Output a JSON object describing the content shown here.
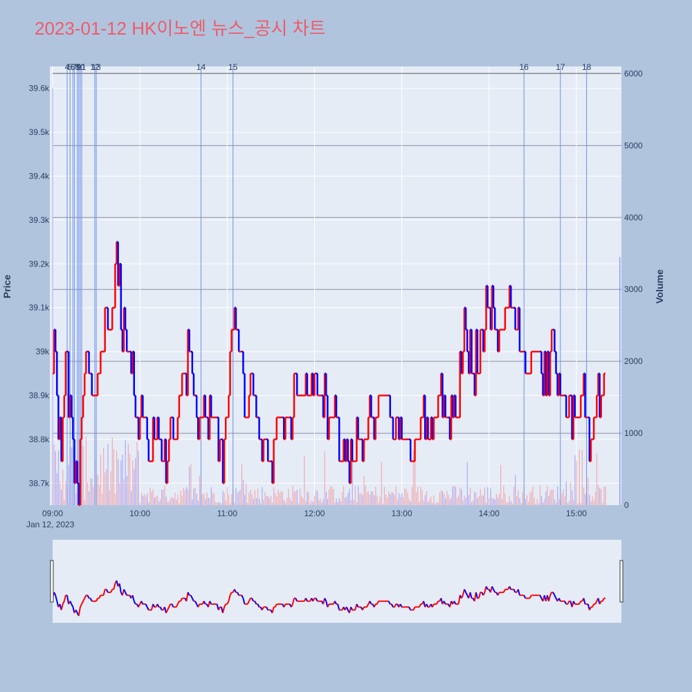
{
  "chart_data": {
    "type": "candlestick",
    "title": "2023-01-12 HK이노엔 뉴스_공시 차트",
    "ylabel": "Price",
    "y2label": "Volume",
    "date_label": "Jan 12, 2023",
    "x_range": [
      "09:00",
      "15:30"
    ],
    "ylim": [
      38650,
      39650
    ],
    "y2lim": [
      0,
      6100
    ],
    "price_ticks": [
      {
        "v": 38700,
        "label": "38.7k"
      },
      {
        "v": 38800,
        "label": "38.8k"
      },
      {
        "v": 38900,
        "label": "38.9k"
      },
      {
        "v": 39000,
        "label": "39k"
      },
      {
        "v": 39100,
        "label": "39.1k"
      },
      {
        "v": 39200,
        "label": "39.2k"
      },
      {
        "v": 39300,
        "label": "39.3k"
      },
      {
        "v": 39400,
        "label": "39.4k"
      },
      {
        "v": 39500,
        "label": "39.5k"
      },
      {
        "v": 39600,
        "label": "39.6k"
      }
    ],
    "volume_ticks": [
      {
        "v": 0,
        "label": "0"
      },
      {
        "v": 1000,
        "label": "1000"
      },
      {
        "v": 2000,
        "label": "2000"
      },
      {
        "v": 3000,
        "label": "3000"
      },
      {
        "v": 4000,
        "label": "4000"
      },
      {
        "v": 5000,
        "label": "5000"
      },
      {
        "v": 6000,
        "label": "6000"
      }
    ],
    "time_ticks": [
      "09:00",
      "10:00",
      "11:00",
      "12:00",
      "13:00",
      "14:00",
      "15:00"
    ],
    "news_markers": [
      {
        "label": "4",
        "time": "09:10"
      },
      {
        "label": "5",
        "time": "09:12"
      },
      {
        "label": "6",
        "time": "09:14"
      },
      {
        "label": "7",
        "time": "09:15"
      },
      {
        "label": "8",
        "time": "09:17"
      },
      {
        "label": "9",
        "time": "09:18"
      },
      {
        "label": "10",
        "time": "09:19"
      },
      {
        "label": "11",
        "time": "09:20"
      },
      {
        "label": "12",
        "time": "09:29"
      },
      {
        "label": "13",
        "time": "09:30"
      },
      {
        "label": "14",
        "time": "10:42"
      },
      {
        "label": "15",
        "time": "11:04"
      },
      {
        "label": "16",
        "time": "14:24"
      },
      {
        "label": "17",
        "time": "14:49"
      },
      {
        "label": "18",
        "time": "15:07"
      }
    ],
    "key_prices": [
      {
        "time": "09:00",
        "price": 38950
      },
      {
        "time": "09:02",
        "price": 39000
      },
      {
        "time": "09:04",
        "price": 38800
      },
      {
        "time": "09:06",
        "price": 38750
      },
      {
        "time": "09:08",
        "price": 38900
      },
      {
        "time": "09:10",
        "price": 38950
      },
      {
        "time": "09:13",
        "price": 38850
      },
      {
        "time": "09:15",
        "price": 38750
      },
      {
        "time": "09:18",
        "price": 38700
      },
      {
        "time": "09:20",
        "price": 38850
      },
      {
        "time": "09:24",
        "price": 39050
      },
      {
        "time": "09:27",
        "price": 38900
      },
      {
        "time": "09:32",
        "price": 38950
      },
      {
        "time": "09:37",
        "price": 39050
      },
      {
        "time": "09:42",
        "price": 39100
      },
      {
        "time": "09:44",
        "price": 39250
      },
      {
        "time": "09:48",
        "price": 39050
      },
      {
        "time": "09:53",
        "price": 39000
      },
      {
        "time": "09:57",
        "price": 38850
      },
      {
        "time": "10:02",
        "price": 38850
      },
      {
        "time": "10:06",
        "price": 38750
      },
      {
        "time": "10:12",
        "price": 38800
      },
      {
        "time": "10:17",
        "price": 38750
      },
      {
        "time": "10:23",
        "price": 38800
      },
      {
        "time": "10:30",
        "price": 38950
      },
      {
        "time": "10:35",
        "price": 39000
      },
      {
        "time": "10:40",
        "price": 38800
      },
      {
        "time": "10:45",
        "price": 38850
      },
      {
        "time": "10:52",
        "price": 38850
      },
      {
        "time": "10:57",
        "price": 38750
      },
      {
        "time": "11:02",
        "price": 39000
      },
      {
        "time": "11:05",
        "price": 39100
      },
      {
        "time": "11:10",
        "price": 39000
      },
      {
        "time": "11:13",
        "price": 38850
      },
      {
        "time": "11:18",
        "price": 38900
      },
      {
        "time": "11:24",
        "price": 38800
      },
      {
        "time": "11:30",
        "price": 38750
      },
      {
        "time": "11:36",
        "price": 38850
      },
      {
        "time": "11:42",
        "price": 38850
      },
      {
        "time": "11:50",
        "price": 38900
      },
      {
        "time": "11:58",
        "price": 38900
      },
      {
        "time": "12:05",
        "price": 38900
      },
      {
        "time": "12:12",
        "price": 38850
      },
      {
        "time": "12:20",
        "price": 38800
      },
      {
        "time": "12:25",
        "price": 38750
      },
      {
        "time": "12:33",
        "price": 38800
      },
      {
        "time": "12:40",
        "price": 38850
      },
      {
        "time": "12:47",
        "price": 38900
      },
      {
        "time": "12:55",
        "price": 38850
      },
      {
        "time": "13:02",
        "price": 38800
      },
      {
        "time": "13:08",
        "price": 38750
      },
      {
        "time": "13:14",
        "price": 38850
      },
      {
        "time": "13:20",
        "price": 38800
      },
      {
        "time": "13:26",
        "price": 38900
      },
      {
        "time": "13:33",
        "price": 38850
      },
      {
        "time": "13:39",
        "price": 38900
      },
      {
        "time": "13:43",
        "price": 39050
      },
      {
        "time": "13:49",
        "price": 38950
      },
      {
        "time": "13:55",
        "price": 39050
      },
      {
        "time": "14:00",
        "price": 39100
      },
      {
        "time": "14:07",
        "price": 39050
      },
      {
        "time": "14:14",
        "price": 39100
      },
      {
        "time": "14:20",
        "price": 39050
      },
      {
        "time": "14:26",
        "price": 38950
      },
      {
        "time": "14:31",
        "price": 39000
      },
      {
        "time": "14:38",
        "price": 38950
      },
      {
        "time": "14:45",
        "price": 39000
      },
      {
        "time": "14:49",
        "price": 38900
      },
      {
        "time": "14:55",
        "price": 38850
      },
      {
        "time": "15:00",
        "price": 38850
      },
      {
        "time": "15:05",
        "price": 38900
      },
      {
        "time": "15:10",
        "price": 38800
      },
      {
        "time": "15:14",
        "price": 38850
      },
      {
        "time": "15:18",
        "price": 38950
      }
    ]
  }
}
